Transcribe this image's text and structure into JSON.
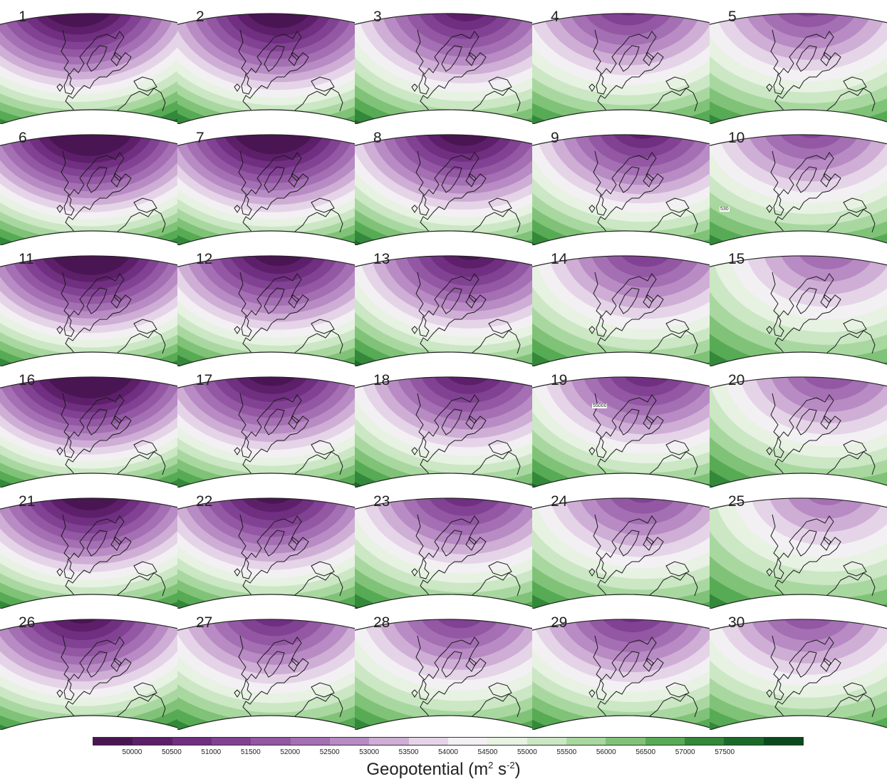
{
  "panels": [
    {
      "label": "1",
      "ridge": -0.3,
      "tilt": -0.15,
      "amp": 1.0
    },
    {
      "label": "2",
      "ridge": 0.05,
      "tilt": 0.45,
      "amp": 0.95
    },
    {
      "label": "3",
      "ridge": 0.3,
      "tilt": 0.4,
      "amp": 0.75
    },
    {
      "label": "4",
      "ridge": 0.05,
      "tilt": 0.1,
      "amp": 0.6
    },
    {
      "label": "5",
      "ridge": 0.1,
      "tilt": 0.15,
      "amp": 0.5
    },
    {
      "label": "6",
      "ridge": -0.1,
      "tilt": 0.1,
      "amp": 1.1
    },
    {
      "label": "7",
      "ridge": 0.0,
      "tilt": 0.25,
      "amp": 1.05
    },
    {
      "label": "8",
      "ridge": 0.25,
      "tilt": 0.45,
      "amp": 0.9
    },
    {
      "label": "9",
      "ridge": 0.25,
      "tilt": 0.5,
      "amp": 0.7
    },
    {
      "label": "10",
      "ridge": 0.15,
      "tilt": 0.2,
      "amp": 0.5
    },
    {
      "label": "11",
      "ridge": -0.1,
      "tilt": 0.2,
      "amp": 1.05
    },
    {
      "label": "12",
      "ridge": 0.1,
      "tilt": 0.3,
      "amp": 0.9
    },
    {
      "label": "13",
      "ridge": 0.35,
      "tilt": 0.55,
      "amp": 0.8
    },
    {
      "label": "14",
      "ridge": 0.3,
      "tilt": 0.6,
      "amp": 0.55
    },
    {
      "label": "15",
      "ridge": 0.4,
      "tilt": 0.6,
      "amp": 0.35
    },
    {
      "label": "16",
      "ridge": -0.1,
      "tilt": 0.1,
      "amp": 1.1
    },
    {
      "label": "17",
      "ridge": 0.0,
      "tilt": 0.15,
      "amp": 0.9
    },
    {
      "label": "18",
      "ridge": 0.35,
      "tilt": 0.45,
      "amp": 0.75
    },
    {
      "label": "19",
      "ridge": 0.35,
      "tilt": 0.55,
      "amp": 0.65
    },
    {
      "label": "20",
      "ridge": 0.45,
      "tilt": 0.6,
      "amp": 0.45
    },
    {
      "label": "21",
      "ridge": -0.1,
      "tilt": 0.1,
      "amp": 0.95
    },
    {
      "label": "22",
      "ridge": 0.0,
      "tilt": 0.2,
      "amp": 0.85
    },
    {
      "label": "23",
      "ridge": 0.3,
      "tilt": 0.35,
      "amp": 0.65
    },
    {
      "label": "24",
      "ridge": 0.3,
      "tilt": 0.4,
      "amp": 0.5
    },
    {
      "label": "25",
      "ridge": 0.4,
      "tilt": 0.55,
      "amp": 0.3
    },
    {
      "label": "26",
      "ridge": -0.25,
      "tilt": 0.0,
      "amp": 0.85
    },
    {
      "label": "27",
      "ridge": 0.05,
      "tilt": 0.2,
      "amp": 0.65
    },
    {
      "label": "28",
      "ridge": 0.2,
      "tilt": 0.3,
      "amp": 0.55
    },
    {
      "label": "29",
      "ridge": 0.1,
      "tilt": 0.25,
      "amp": 0.6
    },
    {
      "label": "30",
      "ridge": 0.05,
      "tilt": 0.3,
      "amp": 0.45
    }
  ],
  "contour_labels": [
    {
      "panel": "10",
      "text": "530"
    },
    {
      "panel": "19",
      "text": "55000"
    }
  ],
  "colorbar": {
    "title": "Geopotential",
    "units": "(m² s⁻²)",
    "ticks": [
      "50000",
      "50500",
      "51000",
      "51500",
      "52000",
      "52500",
      "53000",
      "53500",
      "54000",
      "54500",
      "55000",
      "55500",
      "56000",
      "56500",
      "57000",
      "57500"
    ],
    "colors": [
      "#4a1553",
      "#5d1f6a",
      "#702f80",
      "#814293",
      "#9357a3",
      "#a46fb3",
      "#b88bc4",
      "#cfaed6",
      "#e5d4e8",
      "#f3f0f3",
      "#e7f2e3",
      "#cbe7c4",
      "#a8d8a0",
      "#80c378",
      "#58ab55",
      "#34883a",
      "#1c6a2a",
      "#0b4a1c"
    ]
  }
}
